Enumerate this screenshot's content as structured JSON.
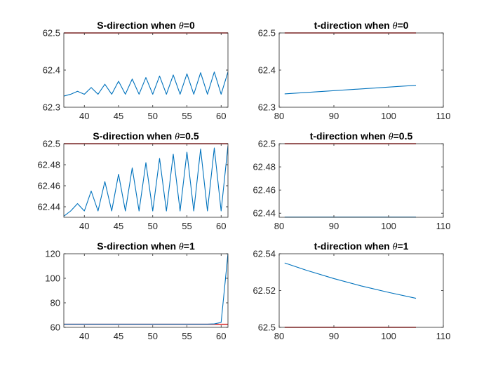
{
  "colors": {
    "data_line": "#0072BD",
    "reference_line": "#D62020",
    "axes": "#262626"
  },
  "chart_data": [
    {
      "type": "line",
      "title_prefix": "S-direction when ",
      "title_symbol": "θ",
      "title_suffix": "=0",
      "xlim": [
        37,
        61
      ],
      "ylim": [
        62.3,
        62.5
      ],
      "xticks": [
        40,
        45,
        50,
        55,
        60
      ],
      "xtick_labels": [
        "40",
        "45",
        "50",
        "55",
        "60"
      ],
      "yticks": [
        62.3,
        62.4,
        62.5
      ],
      "ytick_labels": [
        "62.3",
        "62.4",
        "62.5"
      ],
      "grid": false,
      "series": [
        {
          "role": "reference",
          "x": [
            37,
            61
          ],
          "y": [
            62.5,
            62.5
          ]
        },
        {
          "role": "data",
          "x": [
            37,
            38,
            39,
            40,
            41,
            42,
            43,
            44,
            45,
            46,
            47,
            48,
            49,
            50,
            51,
            52,
            53,
            54,
            55,
            56,
            57,
            58,
            59,
            60,
            61
          ],
          "y": [
            62.33,
            62.335,
            62.343,
            62.335,
            62.353,
            62.335,
            62.362,
            62.335,
            62.37,
            62.335,
            62.376,
            62.335,
            62.38,
            62.335,
            62.384,
            62.335,
            62.387,
            62.335,
            62.39,
            62.335,
            62.393,
            62.335,
            62.395,
            62.335,
            62.395
          ]
        }
      ]
    },
    {
      "type": "line",
      "title_prefix": "t-direction when ",
      "title_symbol": "θ",
      "title_suffix": "=0",
      "xlim": [
        80,
        110
      ],
      "ylim": [
        62.3,
        62.5
      ],
      "xticks": [
        80,
        90,
        100,
        110
      ],
      "xtick_labels": [
        "80",
        "90",
        "100",
        "110"
      ],
      "yticks": [
        62.3,
        62.4,
        62.5
      ],
      "ytick_labels": [
        "62.3",
        "62.4",
        "62.5"
      ],
      "grid": false,
      "series": [
        {
          "role": "reference",
          "x": [
            81,
            105
          ],
          "y": [
            62.5,
            62.5
          ]
        },
        {
          "role": "data",
          "x": [
            81,
            105
          ],
          "y": [
            62.336,
            62.359
          ]
        }
      ]
    },
    {
      "type": "line",
      "title_prefix": "S-direction when ",
      "title_symbol": "θ",
      "title_suffix": "=0.5",
      "xlim": [
        37,
        61
      ],
      "ylim": [
        62.43,
        62.5
      ],
      "xticks": [
        40,
        45,
        50,
        55,
        60
      ],
      "xtick_labels": [
        "40",
        "45",
        "50",
        "55",
        "60"
      ],
      "yticks": [
        62.44,
        62.46,
        62.48,
        62.5
      ],
      "ytick_labels": [
        "62.44",
        "62.46",
        "62.48",
        "62.5"
      ],
      "grid": false,
      "series": [
        {
          "role": "reference",
          "x": [
            37,
            61
          ],
          "y": [
            62.5,
            62.5
          ]
        },
        {
          "role": "data",
          "x": [
            37,
            38,
            39,
            40,
            41,
            42,
            43,
            44,
            45,
            46,
            47,
            48,
            49,
            50,
            51,
            52,
            53,
            54,
            55,
            56,
            57,
            58,
            59,
            60,
            61
          ],
          "y": [
            62.431,
            62.436,
            62.443,
            62.436,
            62.455,
            62.436,
            62.464,
            62.436,
            62.471,
            62.436,
            62.477,
            62.436,
            62.482,
            62.436,
            62.486,
            62.436,
            62.49,
            62.436,
            62.492,
            62.436,
            62.495,
            62.436,
            62.496,
            62.436,
            62.498
          ]
        }
      ]
    },
    {
      "type": "line",
      "title_prefix": "t-direction when ",
      "title_symbol": "θ",
      "title_suffix": "=0.5",
      "xlim": [
        80,
        110
      ],
      "ylim": [
        62.4365,
        62.5
      ],
      "xticks": [
        80,
        90,
        100,
        110
      ],
      "xtick_labels": [
        "80",
        "90",
        "100",
        "110"
      ],
      "yticks": [
        62.44,
        62.46,
        62.48,
        62.5
      ],
      "ytick_labels": [
        "62.44",
        "62.46",
        "62.48",
        "62.5"
      ],
      "grid": false,
      "series": [
        {
          "role": "reference",
          "x": [
            81,
            105
          ],
          "y": [
            62.5,
            62.5
          ]
        },
        {
          "role": "data",
          "x": [
            81,
            105
          ],
          "y": [
            62.4367,
            62.4367
          ]
        }
      ]
    },
    {
      "type": "line",
      "title_prefix": "S-direction when ",
      "title_symbol": "θ",
      "title_suffix": "=1",
      "xlim": [
        37,
        61
      ],
      "ylim": [
        60,
        120
      ],
      "xticks": [
        40,
        45,
        50,
        55,
        60
      ],
      "xtick_labels": [
        "40",
        "45",
        "50",
        "55",
        "60"
      ],
      "yticks": [
        60,
        80,
        100,
        120
      ],
      "ytick_labels": [
        "60",
        "80",
        "100",
        "120"
      ],
      "grid": false,
      "series": [
        {
          "role": "reference",
          "x": [
            37,
            61
          ],
          "y": [
            62.5,
            62.5
          ]
        },
        {
          "role": "data",
          "x": [
            37,
            58,
            59,
            60,
            61
          ],
          "y": [
            62.6,
            62.6,
            62.8,
            64,
            120
          ]
        }
      ]
    },
    {
      "type": "line",
      "title_prefix": "t-direction when ",
      "title_symbol": "θ",
      "title_suffix": "=1",
      "xlim": [
        80,
        110
      ],
      "ylim": [
        62.5,
        62.54
      ],
      "xticks": [
        80,
        90,
        100,
        110
      ],
      "xtick_labels": [
        "80",
        "90",
        "100",
        "110"
      ],
      "yticks": [
        62.5,
        62.52,
        62.54
      ],
      "ytick_labels": [
        "62.5",
        "62.52",
        "62.54"
      ],
      "grid": false,
      "series": [
        {
          "role": "reference",
          "x": [
            81,
            105
          ],
          "y": [
            62.5,
            62.5
          ]
        },
        {
          "role": "data",
          "x": [
            81,
            85,
            90,
            95,
            100,
            105
          ],
          "y": [
            62.535,
            62.531,
            62.5265,
            62.5225,
            62.519,
            62.5158
          ]
        }
      ]
    }
  ]
}
